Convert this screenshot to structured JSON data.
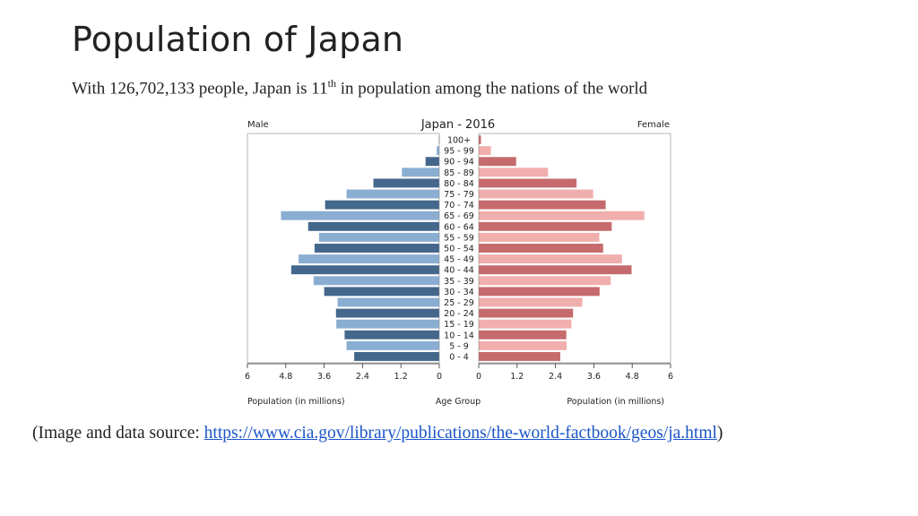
{
  "slide": {
    "title": "Population of Japan",
    "subtitle_before": "With 126,702,133 people, Japan is 11",
    "subtitle_sup": "th",
    "subtitle_after": " in population among the nations of the world",
    "source_before": "(Image and data source: ",
    "source_link": "https://www.cia.gov/library/publications/the-world-factbook/geos/ja.html",
    "source_after": ")"
  },
  "chart_data": {
    "type": "bar",
    "orientation": "horizontal-population-pyramid",
    "title": "Japan - 2016",
    "left_label": "Male",
    "right_label": "Female",
    "xlabel_left": "Population (in millions)",
    "xlabel_center": "Age Group",
    "xlabel_right": "Population (in millions)",
    "xlim": [
      0,
      6
    ],
    "xticks": [
      "6",
      "4.8",
      "3.6",
      "2.4",
      "1.2",
      "0"
    ],
    "xticks_right": [
      "0",
      "1.2",
      "2.4",
      "3.6",
      "4.8",
      "6"
    ],
    "categories": [
      "100+",
      "95 - 99",
      "90 - 94",
      "85 - 89",
      "80 - 84",
      "75 - 79",
      "70 - 74",
      "65 - 69",
      "60 - 64",
      "55 - 59",
      "50 - 54",
      "45 - 49",
      "40 - 44",
      "35 - 39",
      "30 - 34",
      "25 - 29",
      "20 - 24",
      "15 - 19",
      "10 - 14",
      "5 - 9",
      "0 - 4"
    ],
    "series": [
      {
        "name": "Male",
        "values": [
          0.01,
          0.08,
          0.43,
          1.17,
          2.06,
          2.9,
          3.57,
          4.95,
          4.1,
          3.76,
          3.9,
          4.4,
          4.63,
          3.93,
          3.6,
          3.18,
          3.23,
          3.22,
          2.96,
          2.9,
          2.66
        ]
      },
      {
        "name": "Female",
        "values": [
          0.07,
          0.38,
          1.17,
          2.17,
          3.06,
          3.58,
          3.97,
          5.18,
          4.16,
          3.77,
          3.89,
          4.48,
          4.78,
          4.13,
          3.78,
          3.24,
          2.95,
          2.9,
          2.74,
          2.75,
          2.55
        ]
      }
    ],
    "colors": {
      "male_dark": "#44678c",
      "male_light": "#8aaed2",
      "female_dark": "#c66b6d",
      "female_light": "#f0aeac",
      "axis": "#333333"
    },
    "grid": false
  }
}
